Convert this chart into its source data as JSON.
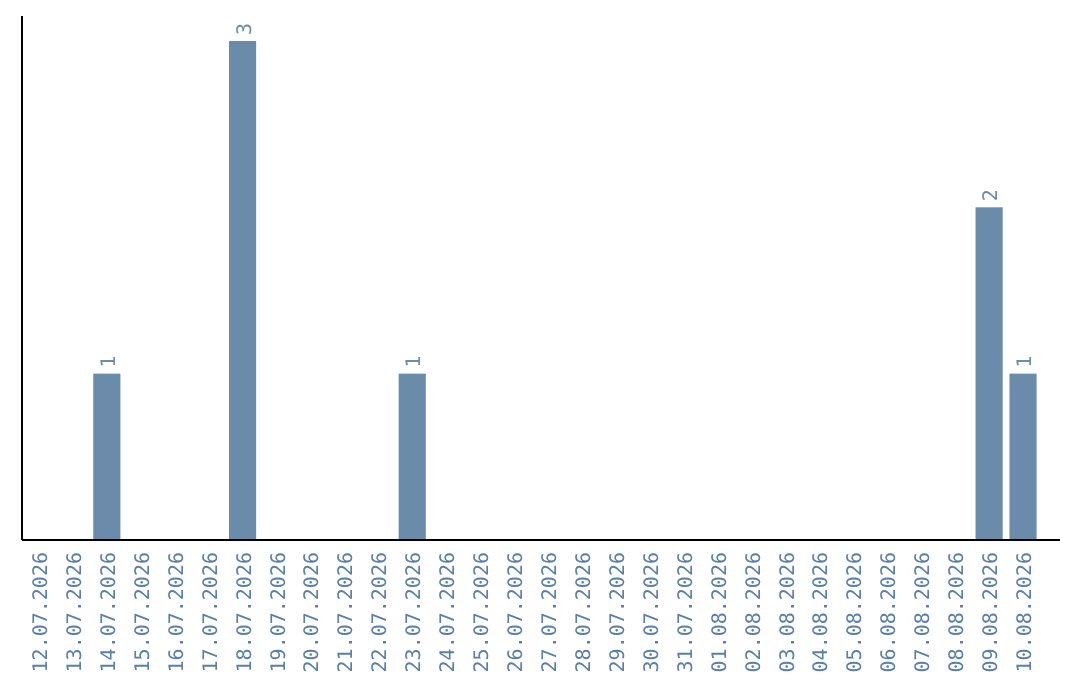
{
  "chart_data": {
    "type": "bar",
    "categories": [
      "12.07.2026",
      "13.07.2026",
      "14.07.2026",
      "15.07.2026",
      "16.07.2026",
      "17.07.2026",
      "18.07.2026",
      "19.07.2026",
      "20.07.2026",
      "21.07.2026",
      "22.07.2026",
      "23.07.2026",
      "24.07.2026",
      "25.07.2026",
      "26.07.2026",
      "27.07.2026",
      "28.07.2026",
      "29.07.2026",
      "30.07.2026",
      "31.07.2026",
      "01.08.2026",
      "02.08.2026",
      "03.08.2026",
      "04.08.2026",
      "05.08.2026",
      "06.08.2026",
      "07.08.2026",
      "08.08.2026",
      "09.08.2026",
      "10.08.2026"
    ],
    "values": [
      null,
      null,
      1,
      null,
      null,
      null,
      3,
      null,
      null,
      null,
      null,
      1,
      null,
      null,
      null,
      null,
      null,
      null,
      null,
      null,
      null,
      null,
      null,
      null,
      null,
      null,
      null,
      null,
      2,
      1
    ],
    "color": "#6b8bab",
    "ylim": [
      0,
      3.15
    ],
    "data_labels": true,
    "tick_labels": "x"
  }
}
